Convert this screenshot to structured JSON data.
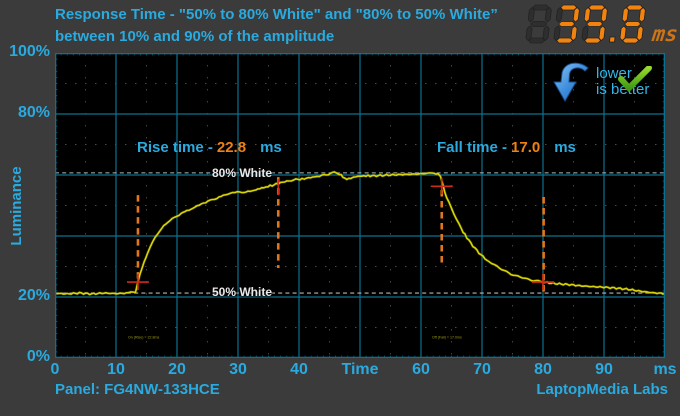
{
  "header": {
    "title_line1": "Response Time - \"50% to 80% White\" and \"80% to 50% White”",
    "title_line2": "between 10% and 90% of the amplitude"
  },
  "result": {
    "value": "39.8",
    "unit": "ms"
  },
  "badge": {
    "line1": "lower",
    "line2": "is better"
  },
  "footer": {
    "panel": "Panel: FG4NW-133HCE",
    "lab": "LaptopMedia Labs"
  },
  "colors": {
    "background": "#3b3b3b",
    "plot_bg": "#000000",
    "cyan_text": "#2aaadf",
    "grid": "#0c7090",
    "curve": "#d8d409",
    "marker_orange": "#e0771c",
    "cross_red": "#cf2a18",
    "ref_gray": "#b8b8b8",
    "segment_orange": "#f2830f"
  },
  "chart_data": {
    "type": "line",
    "title": "Response Time - \"50% to 80% White\" and \"80% to 50% White\" between 10% and 90% of the amplitude",
    "xlabel": "Time (ms)",
    "ylabel": "Luminance",
    "xlim": [
      0,
      100
    ],
    "ylim": [
      0,
      100
    ],
    "grid": "on",
    "result_ms": 39.8,
    "rise_time_ms": 22.8,
    "fall_time_ms": 17.0,
    "x_ticks": [
      "0",
      "10",
      "20",
      "30",
      "40",
      "Time",
      "60",
      "70",
      "80",
      "90",
      "ms"
    ],
    "y_ticks": [
      {
        "label": "100%",
        "pct": 100
      },
      {
        "label": "80%",
        "pct": 80
      },
      {
        "label": "20%",
        "pct": 20
      },
      {
        "label": "0%",
        "pct": 0
      }
    ],
    "reference_lines": [
      {
        "label": "80% White",
        "pct": 60.7
      },
      {
        "label": "50% White",
        "pct": 21.3
      }
    ],
    "annotations": {
      "rise": {
        "prefix": "Rise time -",
        "value": "22.8",
        "unit": "ms"
      },
      "fall": {
        "prefix": "Fall time -",
        "value": "17.0",
        "unit": "ms"
      }
    },
    "markers": {
      "dashed": [
        {
          "x_ms": 13.6,
          "pct_from": 53.4,
          "pct_to": 24.6
        },
        {
          "x_ms": 36.6,
          "pct_from": 59.3,
          "pct_to": 29.5
        },
        {
          "x_ms": 63.4,
          "pct_from": 55.1,
          "pct_to": 30.5
        },
        {
          "x_ms": 80.1,
          "pct_from": 52.8,
          "pct_to": 21.6
        }
      ],
      "crosses": [
        {
          "x_ms": 13.6,
          "pct": 24.9,
          "h": true,
          "v": true
        },
        {
          "x_ms": 36.6,
          "pct": 56.0,
          "h": false,
          "v": true
        },
        {
          "x_ms": 63.4,
          "pct": 56.3,
          "h": true,
          "v": true
        },
        {
          "x_ms": 80.0,
          "pct": 24.9,
          "h": true,
          "v": true
        }
      ]
    },
    "scope_captions": [
      {
        "text": "On (Rise) = 22.8ms",
        "x_ms": 12.0,
        "pct": 6.6
      },
      {
        "text": "Off (Fall) = 17.0ms",
        "x_ms": 61.8,
        "pct": 6.6
      }
    ],
    "series": [
      {
        "name": "Luminance response",
        "color": "#d8d409",
        "points": [
          [
            0,
            21.2
          ],
          [
            2,
            21.0
          ],
          [
            4,
            21.3
          ],
          [
            6,
            21.0
          ],
          [
            8,
            21.3
          ],
          [
            10,
            21.1
          ],
          [
            12,
            21.3
          ],
          [
            13.2,
            21.6
          ],
          [
            13.6,
            25.0
          ],
          [
            14.3,
            29.8
          ],
          [
            15.2,
            34.5
          ],
          [
            16.4,
            39.5
          ],
          [
            17.5,
            42.6
          ],
          [
            18.8,
            44.9
          ],
          [
            20,
            46.6
          ],
          [
            21.3,
            47.9
          ],
          [
            22.6,
            49.2
          ],
          [
            24,
            50.5
          ],
          [
            25.4,
            51.6
          ],
          [
            26.9,
            52.8
          ],
          [
            28.3,
            53.8
          ],
          [
            29.5,
            54.2
          ],
          [
            31,
            54.4
          ],
          [
            32.3,
            54.6
          ],
          [
            33.9,
            55.7
          ],
          [
            35.6,
            56.6
          ],
          [
            36.6,
            57.2
          ],
          [
            38,
            58.0
          ],
          [
            39.5,
            58.5
          ],
          [
            40.5,
            58.7
          ],
          [
            42.6,
            59.4
          ],
          [
            44.5,
            60.1
          ],
          [
            45.8,
            60.9
          ],
          [
            46.6,
            60.4
          ],
          [
            47.5,
            58.9
          ],
          [
            48.5,
            58.7
          ],
          [
            49.3,
            59.4
          ],
          [
            50.3,
            59.7
          ],
          [
            52,
            59.7
          ],
          [
            54,
            59.9
          ],
          [
            56,
            60.1
          ],
          [
            58,
            60.2
          ],
          [
            60,
            60.4
          ],
          [
            61.5,
            60.6
          ],
          [
            62.8,
            60.5
          ],
          [
            63.2,
            59.5
          ],
          [
            63.6,
            56.5
          ],
          [
            64.2,
            52.5
          ],
          [
            65,
            49.0
          ],
          [
            65.8,
            45.5
          ],
          [
            66.6,
            42.3
          ],
          [
            67.5,
            39.5
          ],
          [
            68.5,
            36.8
          ],
          [
            69.5,
            34.5
          ],
          [
            70.5,
            32.6
          ],
          [
            71.6,
            31.0
          ],
          [
            72.8,
            29.5
          ],
          [
            74,
            28.2
          ],
          [
            75.5,
            27.0
          ],
          [
            77,
            26.1
          ],
          [
            78.5,
            25.4
          ],
          [
            80,
            24.9
          ],
          [
            82,
            24.4
          ],
          [
            84,
            24.1
          ],
          [
            86,
            23.7
          ],
          [
            88,
            23.4
          ],
          [
            90,
            23.2
          ],
          [
            92,
            22.9
          ],
          [
            94,
            22.5
          ],
          [
            96,
            21.9
          ],
          [
            98,
            21.4
          ],
          [
            100,
            21.1
          ]
        ]
      }
    ],
    "legend": "none"
  }
}
